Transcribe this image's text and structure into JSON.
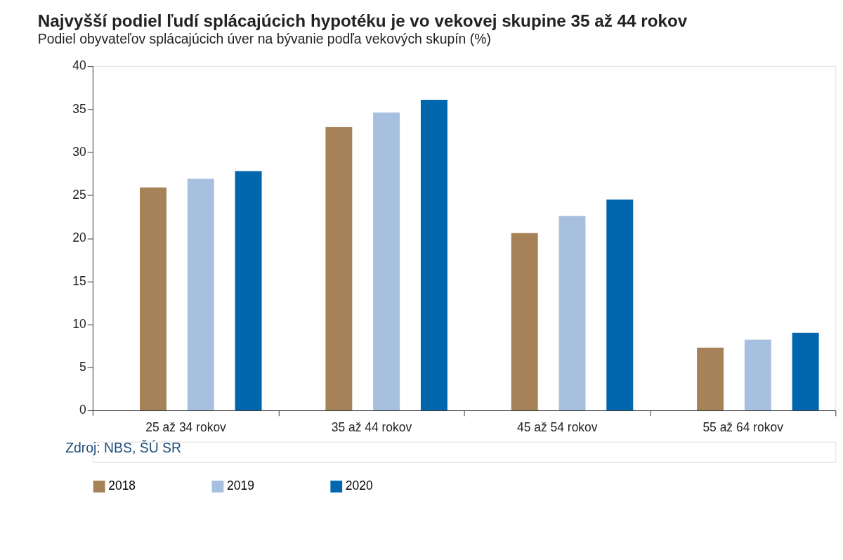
{
  "chart_data": {
    "type": "bar",
    "title": "Najvyšší podiel ľudí splácajúcich hypotéku je vo vekovej skupine 35 až 44 rokov",
    "subtitle": "Podiel obyvateľov splácajúcich úver na bývanie podľa vekových skupín (%)",
    "categories": [
      "25 až 34 rokov",
      "35 až 44 rokov",
      "45 až 54 rokov",
      "55 až 64 rokov"
    ],
    "series": [
      {
        "name": "2018",
        "color": "#a68258",
        "values": [
          25.9,
          32.9,
          20.6,
          7.3
        ]
      },
      {
        "name": "2019",
        "color": "#a8c0e0",
        "values": [
          26.9,
          34.6,
          22.6,
          8.2
        ]
      },
      {
        "name": "2020",
        "color": "#0066ad",
        "values": [
          27.8,
          36.1,
          24.5,
          9.0
        ]
      }
    ],
    "ylim": [
      0,
      40
    ],
    "yticks": [
      0,
      5,
      10,
      15,
      20,
      25,
      30,
      35,
      40
    ],
    "grid": false,
    "legend": "bottom left",
    "annotations": [
      "Zdroj: NBS, ŠÚ SR"
    ]
  }
}
